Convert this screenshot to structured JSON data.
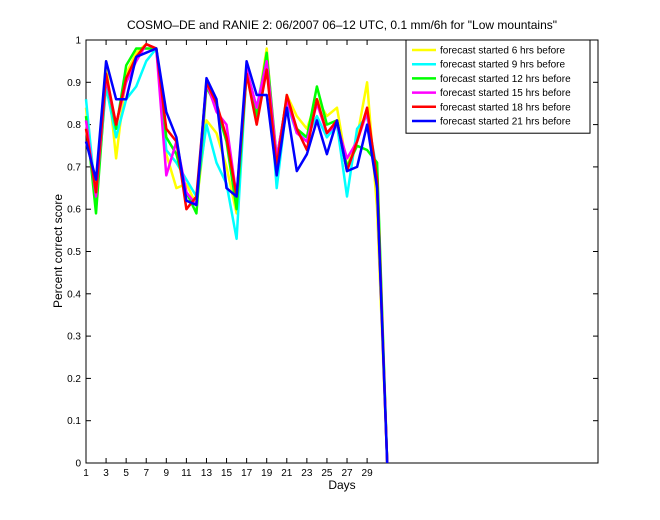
{
  "chart_data": {
    "type": "line",
    "title": "COSMO–DE and RANIE 2: 06/2007 06–12 UTC, 0.1 mm/6h for \"Low mountains\"",
    "xlabel": "Days",
    "ylabel": "Percent correct score",
    "xlim": [
      1,
      52
    ],
    "ylim": [
      0,
      1
    ],
    "xticks": [
      1,
      3,
      5,
      7,
      9,
      11,
      13,
      15,
      17,
      19,
      21,
      23,
      25,
      27,
      29
    ],
    "yticks": [
      0,
      0.1,
      0.2,
      0.3,
      0.4,
      0.5,
      0.6,
      0.7,
      0.8,
      0.9,
      1
    ],
    "legend_position": "top-right",
    "x": [
      1,
      2,
      3,
      4,
      5,
      6,
      7,
      8,
      9,
      10,
      11,
      12,
      13,
      14,
      15,
      16,
      17,
      18,
      19,
      20,
      21,
      22,
      23,
      24,
      25,
      26,
      27,
      28,
      29,
      30,
      31
    ],
    "series": [
      {
        "name": "forecast started 6 hrs before",
        "color": "#ffff00",
        "values": [
          0.84,
          0.61,
          0.95,
          0.72,
          0.92,
          0.97,
          0.99,
          0.98,
          0.73,
          0.65,
          0.66,
          0.61,
          0.81,
          0.78,
          0.7,
          0.59,
          0.93,
          0.83,
          0.98,
          0.7,
          0.87,
          0.82,
          0.79,
          0.86,
          0.82,
          0.84,
          0.7,
          0.77,
          0.9,
          0.6,
          0
        ]
      },
      {
        "name": "forecast started 9 hrs before",
        "color": "#00ffff",
        "values": [
          0.86,
          0.62,
          0.89,
          0.77,
          0.86,
          0.89,
          0.95,
          0.98,
          0.74,
          0.71,
          0.67,
          0.63,
          0.8,
          0.71,
          0.66,
          0.53,
          0.93,
          0.84,
          0.96,
          0.65,
          0.85,
          0.78,
          0.77,
          0.82,
          0.77,
          0.8,
          0.63,
          0.79,
          0.82,
          0.69,
          0
        ]
      },
      {
        "name": "forecast started 12 hrs before",
        "color": "#00ff00",
        "values": [
          0.82,
          0.59,
          0.91,
          0.79,
          0.94,
          0.98,
          0.98,
          0.98,
          0.77,
          0.73,
          0.64,
          0.59,
          0.89,
          0.84,
          0.76,
          0.6,
          0.92,
          0.82,
          0.97,
          0.72,
          0.86,
          0.79,
          0.77,
          0.89,
          0.8,
          0.81,
          0.7,
          0.75,
          0.74,
          0.71,
          0
        ]
      },
      {
        "name": "forecast started 15 hrs before",
        "color": "#ff00ff",
        "values": [
          0.81,
          0.63,
          0.91,
          0.8,
          0.9,
          0.95,
          0.99,
          0.98,
          0.68,
          0.76,
          0.64,
          0.61,
          0.9,
          0.83,
          0.8,
          0.63,
          0.93,
          0.84,
          0.95,
          0.72,
          0.86,
          0.78,
          0.76,
          0.85,
          0.78,
          0.8,
          0.72,
          0.76,
          0.83,
          0.65,
          0
        ]
      },
      {
        "name": "forecast started 18 hrs before",
        "color": "#ff0000",
        "values": [
          0.79,
          0.64,
          0.92,
          0.8,
          0.91,
          0.96,
          0.99,
          0.98,
          0.79,
          0.76,
          0.6,
          0.63,
          0.9,
          0.85,
          0.77,
          0.63,
          0.92,
          0.8,
          0.93,
          0.7,
          0.87,
          0.79,
          0.74,
          0.86,
          0.78,
          0.81,
          0.69,
          0.76,
          0.84,
          0.67,
          0
        ]
      },
      {
        "name": "forecast started 21 hrs before",
        "color": "#0000ff",
        "values": [
          0.76,
          0.67,
          0.95,
          0.86,
          0.86,
          0.96,
          0.97,
          0.98,
          0.83,
          0.77,
          0.62,
          0.61,
          0.91,
          0.86,
          0.65,
          0.63,
          0.95,
          0.87,
          0.87,
          0.68,
          0.84,
          0.69,
          0.73,
          0.81,
          0.73,
          0.81,
          0.69,
          0.7,
          0.8,
          0.65,
          0
        ]
      }
    ]
  }
}
